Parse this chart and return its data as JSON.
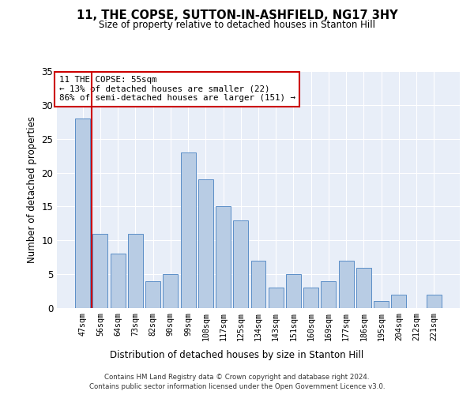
{
  "title": "11, THE COPSE, SUTTON-IN-ASHFIELD, NG17 3HY",
  "subtitle": "Size of property relative to detached houses in Stanton Hill",
  "xlabel": "Distribution of detached houses by size in Stanton Hill",
  "ylabel": "Number of detached properties",
  "categories": [
    "47sqm",
    "56sqm",
    "64sqm",
    "73sqm",
    "82sqm",
    "90sqm",
    "99sqm",
    "108sqm",
    "117sqm",
    "125sqm",
    "134sqm",
    "143sqm",
    "151sqm",
    "160sqm",
    "169sqm",
    "177sqm",
    "186sqm",
    "195sqm",
    "204sqm",
    "212sqm",
    "221sqm"
  ],
  "values": [
    28,
    11,
    8,
    11,
    4,
    5,
    23,
    19,
    15,
    13,
    7,
    3,
    5,
    3,
    4,
    7,
    6,
    1,
    2,
    0,
    2
  ],
  "bar_color": "#b8cce4",
  "bar_edge_color": "#5b8ec7",
  "highlight_line_color": "#cc0000",
  "annotation_text": "11 THE COPSE: 55sqm\n← 13% of detached houses are smaller (22)\n86% of semi-detached houses are larger (151) →",
  "annotation_box_color": "#ffffff",
  "annotation_box_edge_color": "#cc0000",
  "ylim": [
    0,
    35
  ],
  "yticks": [
    0,
    5,
    10,
    15,
    20,
    25,
    30,
    35
  ],
  "background_color": "#e8eef8",
  "grid_color": "#ffffff",
  "footer_line1": "Contains HM Land Registry data © Crown copyright and database right 2024.",
  "footer_line2": "Contains public sector information licensed under the Open Government Licence v3.0."
}
